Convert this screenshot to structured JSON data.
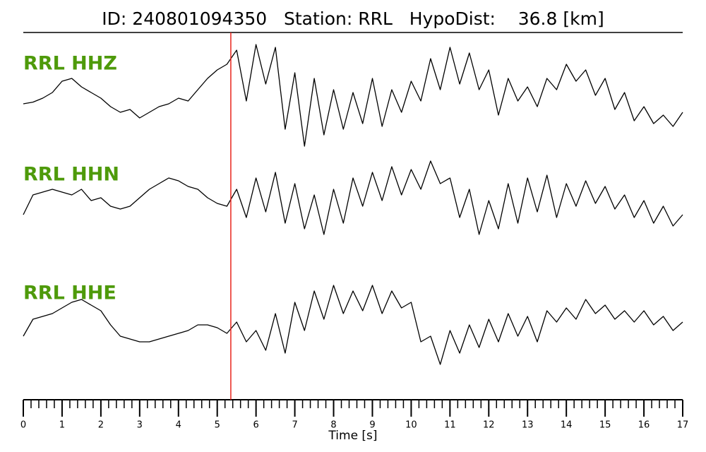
{
  "chart_data": {
    "type": "line",
    "title": "ID: 240801094350   Station: RRL   HypoDist:    36.8 [km]",
    "x_label": "Time [s]",
    "xlim": [
      0,
      17
    ],
    "xticks": [
      0,
      1,
      2,
      3,
      4,
      5,
      6,
      7,
      8,
      9,
      10,
      11,
      12,
      13,
      14,
      15,
      16,
      17
    ],
    "xminorticks": [
      0.2,
      0.4,
      0.6,
      0.8,
      1.2,
      1.4,
      1.6,
      1.8,
      2.2,
      2.4,
      2.6,
      2.8,
      3.2,
      3.4,
      3.6,
      3.8,
      4.2,
      4.4,
      4.6,
      4.8,
      5.2,
      5.4,
      5.6,
      5.8,
      6.2,
      6.4,
      6.6,
      6.8,
      7.2,
      7.4,
      7.6,
      7.8,
      8.2,
      8.4,
      8.6,
      8.8,
      9.2,
      9.4,
      9.6,
      9.8,
      10.2,
      10.4,
      10.6,
      10.8,
      11.2,
      11.4,
      11.6,
      11.8,
      12.2,
      12.4,
      12.6,
      12.8,
      13.2,
      13.4,
      13.6,
      13.8,
      14.2,
      14.4,
      14.6,
      14.8,
      15.2,
      15.4,
      15.6,
      15.8,
      16.2,
      16.4,
      16.6,
      16.8
    ],
    "ylim": [
      -1,
      1
    ],
    "pick_time": 5.35,
    "pick_color": "#e8241c",
    "label_color": "#4e9a0a",
    "x": [
      0,
      0.25,
      0.5,
      0.75,
      1,
      1.25,
      1.5,
      1.75,
      2,
      2.25,
      2.5,
      2.75,
      3,
      3.25,
      3.5,
      3.75,
      4,
      4.25,
      4.5,
      4.75,
      5,
      5.25,
      5.5,
      5.75,
      6,
      6.25,
      6.5,
      6.75,
      7,
      7.25,
      7.5,
      7.75,
      8,
      8.25,
      8.5,
      8.75,
      9,
      9.25,
      9.5,
      9.75,
      10,
      10.25,
      10.5,
      10.75,
      11,
      11.25,
      11.5,
      11.75,
      12,
      12.25,
      12.5,
      12.75,
      13,
      13.25,
      13.5,
      13.75,
      14,
      14.25,
      14.5,
      14.75,
      15,
      15.25,
      15.5,
      15.75,
      16,
      16.25,
      16.5,
      16.75,
      17
    ],
    "series": [
      {
        "name": "RRL HHZ",
        "color": "#000000",
        "values": [
          -0.15,
          -0.12,
          -0.05,
          0.05,
          0.25,
          0.3,
          0.15,
          0.05,
          -0.05,
          -0.2,
          -0.3,
          -0.25,
          -0.4,
          -0.3,
          -0.2,
          -0.15,
          -0.05,
          -0.1,
          0.1,
          0.3,
          0.45,
          0.55,
          0.8,
          -0.1,
          0.9,
          0.2,
          0.85,
          -0.6,
          0.4,
          -0.9,
          0.3,
          -0.7,
          0.1,
          -0.6,
          0.05,
          -0.5,
          0.3,
          -0.55,
          0.1,
          -0.3,
          0.25,
          -0.1,
          0.65,
          0.1,
          0.85,
          0.2,
          0.75,
          0.1,
          0.45,
          -0.35,
          0.3,
          -0.1,
          0.15,
          -0.2,
          0.3,
          0.1,
          0.55,
          0.25,
          0.45,
          0.0,
          0.3,
          -0.25,
          0.05,
          -0.45,
          -0.2,
          -0.5,
          -0.35,
          -0.55,
          -0.3
        ]
      },
      {
        "name": "RRL HHN",
        "color": "#000000",
        "values": [
          -0.15,
          0.2,
          0.25,
          0.3,
          0.25,
          0.2,
          0.3,
          0.1,
          0.15,
          0.0,
          -0.05,
          0.0,
          0.15,
          0.3,
          0.4,
          0.5,
          0.45,
          0.35,
          0.3,
          0.15,
          0.05,
          0.0,
          0.3,
          -0.2,
          0.5,
          -0.1,
          0.6,
          -0.3,
          0.4,
          -0.4,
          0.2,
          -0.5,
          0.3,
          -0.3,
          0.5,
          0.0,
          0.6,
          0.1,
          0.7,
          0.2,
          0.65,
          0.3,
          0.8,
          0.4,
          0.5,
          -0.2,
          0.3,
          -0.5,
          0.1,
          -0.4,
          0.4,
          -0.3,
          0.5,
          -0.1,
          0.55,
          -0.2,
          0.4,
          0.0,
          0.45,
          0.05,
          0.35,
          -0.05,
          0.2,
          -0.2,
          0.1,
          -0.3,
          0.0,
          -0.35,
          -0.15
        ]
      },
      {
        "name": "RRL HHE",
        "color": "#000000",
        "values": [
          -0.2,
          0.1,
          0.15,
          0.2,
          0.3,
          0.4,
          0.45,
          0.35,
          0.25,
          0.0,
          -0.2,
          -0.25,
          -0.3,
          -0.3,
          -0.25,
          -0.2,
          -0.15,
          -0.1,
          0.0,
          0.0,
          -0.05,
          -0.15,
          0.05,
          -0.3,
          -0.1,
          -0.45,
          0.2,
          -0.5,
          0.4,
          -0.1,
          0.6,
          0.1,
          0.7,
          0.2,
          0.6,
          0.25,
          0.7,
          0.2,
          0.6,
          0.3,
          0.4,
          -0.3,
          -0.2,
          -0.7,
          -0.1,
          -0.5,
          0.0,
          -0.4,
          0.1,
          -0.3,
          0.2,
          -0.2,
          0.15,
          -0.3,
          0.25,
          0.05,
          0.3,
          0.1,
          0.45,
          0.2,
          0.35,
          0.1,
          0.25,
          0.05,
          0.25,
          0.0,
          0.15,
          -0.1,
          0.05
        ]
      }
    ]
  }
}
